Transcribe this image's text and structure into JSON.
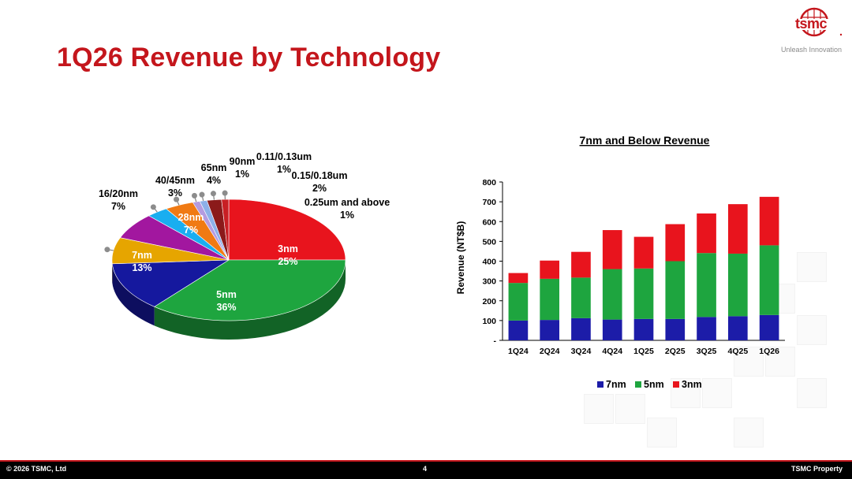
{
  "slide": {
    "title": "1Q26 Revenue by Technology",
    "logo_text": "tsmc",
    "logo_tagline": "Unleash Innovation",
    "footer": {
      "copyright": "© 2026 TSMC, Ltd",
      "page_number": "4",
      "property": "TSMC Property"
    }
  },
  "chart_data": [
    {
      "type": "pie",
      "title": "",
      "slices": [
        {
          "label": "3nm",
          "value": 25,
          "pct": "25%",
          "color": "#e8141d"
        },
        {
          "label": "5nm",
          "value": 36,
          "pct": "36%",
          "color": "#1ea53f"
        },
        {
          "label": "7nm",
          "value": 13,
          "pct": "13%",
          "color": "#15189e"
        },
        {
          "label": "16/20nm",
          "value": 7,
          "pct": "7%",
          "color": "#e6a500"
        },
        {
          "label": "28nm",
          "value": 7,
          "pct": "7%",
          "color": "#a2179f"
        },
        {
          "label": "40/45nm",
          "value": 3,
          "pct": "3%",
          "color": "#19aef0"
        },
        {
          "label": "65nm",
          "value": 4,
          "pct": "4%",
          "color": "#f07a13"
        },
        {
          "label": "90nm",
          "value": 1,
          "pct": "1%",
          "color": "#b49be0"
        },
        {
          "label": "0.11/0.13um",
          "value": 1,
          "pct": "1%",
          "color": "#8db0e8"
        },
        {
          "label": "0.15/0.18um",
          "value": 2,
          "pct": "2%",
          "color": "#8b1a1a"
        },
        {
          "label": "0.25um and above",
          "value": 1,
          "pct": "1%",
          "color": "#c81f24"
        }
      ]
    },
    {
      "type": "bar",
      "stacked": true,
      "title": "7nm and Below Revenue",
      "ylabel": "Revenue (NT$B)",
      "xlabel": "",
      "ylim": [
        0,
        800
      ],
      "yticks": [
        {
          "value": 0,
          "label": "-"
        },
        {
          "value": 100,
          "label": "100"
        },
        {
          "value": 200,
          "label": "200"
        },
        {
          "value": 300,
          "label": "300"
        },
        {
          "value": 400,
          "label": "400"
        },
        {
          "value": 500,
          "label": "500"
        },
        {
          "value": 600,
          "label": "600"
        },
        {
          "value": 700,
          "label": "700"
        },
        {
          "value": 800,
          "label": "800"
        }
      ],
      "categories": [
        "1Q24",
        "2Q24",
        "3Q24",
        "4Q24",
        "1Q25",
        "2Q25",
        "3Q25",
        "4Q25",
        "1Q26"
      ],
      "series": [
        {
          "name": "7nm",
          "color": "#1c1ca8",
          "values": [
            100,
            103,
            112,
            105,
            108,
            108,
            118,
            122,
            128
          ]
        },
        {
          "name": "5nm",
          "color": "#1ea53f",
          "values": [
            190,
            208,
            205,
            255,
            255,
            292,
            323,
            316,
            352
          ]
        },
        {
          "name": "3nm",
          "color": "#e8141d",
          "values": [
            50,
            92,
            130,
            197,
            160,
            187,
            200,
            250,
            245
          ]
        }
      ],
      "legend": "bottom"
    }
  ]
}
